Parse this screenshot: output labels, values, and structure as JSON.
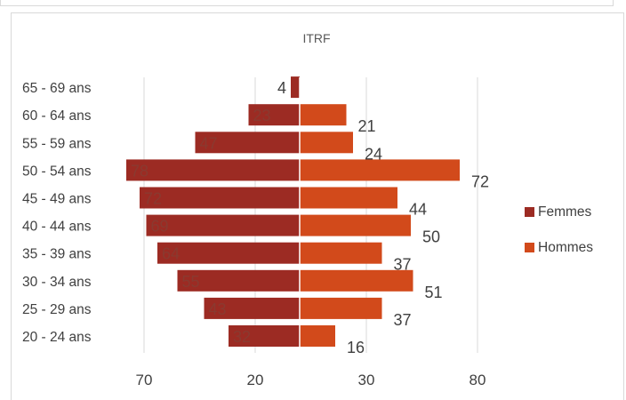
{
  "chart_data": {
    "type": "bar",
    "orientation": "horizontal",
    "subtype": "population-pyramid",
    "title": "ITRF",
    "categories": [
      "20 - 24 ans",
      "25 - 29 ans",
      "30 - 34 ans",
      "35 - 39 ans",
      "40 - 44 ans",
      "45 - 49 ans",
      "50 - 54 ans",
      "55 - 59 ans",
      "60 - 64 ans",
      "65 - 69 ans"
    ],
    "series": [
      {
        "name": "Femmes",
        "color": "#9c2b23",
        "side": "left",
        "values": [
          32,
          43,
          55,
          64,
          69,
          72,
          78,
          47,
          23,
          4
        ]
      },
      {
        "name": "Hommes",
        "color": "#d24a1b",
        "side": "right",
        "values": [
          16,
          37,
          51,
          37,
          50,
          44,
          72,
          24,
          21,
          null
        ]
      }
    ],
    "x_tick_labels": [
      "70",
      "20",
      "30",
      "80"
    ],
    "xlim": [
      -80,
      80
    ],
    "grid": true,
    "legend_position": "right"
  }
}
